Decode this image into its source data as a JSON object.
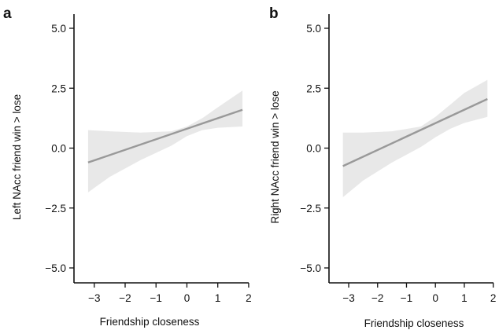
{
  "chart_data": [
    {
      "panel": "a",
      "type": "line",
      "xlabel": "Friendship closeness",
      "ylabel": "Left NAcc friend win > lose",
      "xlim": [
        -3.3,
        1.9
      ],
      "ylim": [
        -5.0,
        5.0
      ],
      "xticks": [
        -3,
        -2,
        -1,
        0,
        1,
        2
      ],
      "yticks": [
        5.0,
        2.5,
        0.0,
        -2.5,
        -5.0
      ],
      "ytick_labels": [
        "5.0",
        "2.5",
        "0.0",
        "−2.5",
        "−5.0"
      ],
      "xtick_labels": [
        "−3",
        "−2",
        "−1",
        "0",
        "1",
        "2"
      ],
      "grid": false,
      "series": [
        {
          "x": [
            -3.2,
            1.8
          ],
          "y": [
            -0.6,
            1.6
          ],
          "band_x": [
            -3.2,
            -2.5,
            -1.5,
            -0.5,
            0.0,
            0.5,
            1.0,
            1.8
          ],
          "band_upper": [
            0.75,
            0.7,
            0.65,
            0.7,
            0.9,
            1.25,
            1.7,
            2.4
          ],
          "band_lower": [
            -1.85,
            -1.2,
            -0.5,
            0.1,
            0.5,
            0.75,
            0.85,
            0.9
          ]
        }
      ]
    },
    {
      "panel": "b",
      "type": "line",
      "xlabel": "Friendship closeness",
      "ylabel": "Right NAcc friend win > lose",
      "xlim": [
        -3.3,
        1.9
      ],
      "ylim": [
        -5.0,
        5.0
      ],
      "xticks": [
        -3,
        -2,
        -1,
        0,
        1,
        2
      ],
      "yticks": [
        5.0,
        2.5,
        0.0,
        -2.5,
        -5.0
      ],
      "ytick_labels": [
        "5.0",
        "2.5",
        "0.0",
        "−2.5",
        "−5.0"
      ],
      "xtick_labels": [
        "−3",
        "−2",
        "−1",
        "0",
        "1",
        "2"
      ],
      "grid": false,
      "series": [
        {
          "x": [
            -3.2,
            1.8
          ],
          "y": [
            -0.75,
            2.05
          ],
          "band_x": [
            -3.2,
            -2.5,
            -1.5,
            -0.5,
            0.0,
            0.5,
            1.0,
            1.8
          ],
          "band_upper": [
            0.65,
            0.65,
            0.7,
            0.9,
            1.3,
            1.8,
            2.3,
            2.85
          ],
          "band_lower": [
            -2.05,
            -1.35,
            -0.6,
            0.05,
            0.45,
            0.8,
            1.05,
            1.3
          ]
        }
      ]
    }
  ]
}
